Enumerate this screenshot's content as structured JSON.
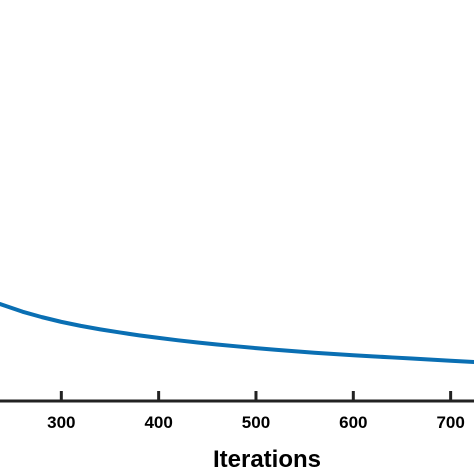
{
  "chart_data": {
    "type": "line",
    "title": "",
    "xlabel": "Iterations",
    "ylabel": "",
    "grid": false,
    "legend": "none",
    "x_ticks": [
      300,
      400,
      500,
      600,
      700
    ],
    "x_tick_labels": [
      "300",
      "400",
      "500",
      "600",
      "700"
    ],
    "xlim": [
      237,
      724
    ],
    "series": [
      {
        "color": "#0a6fb3",
        "x": [
          237,
          260,
          280,
          300,
          320,
          340,
          360,
          380,
          400,
          420,
          440,
          460,
          480,
          500,
          520,
          540,
          560,
          580,
          600,
          620,
          640,
          660,
          680,
          700,
          724
        ],
        "y": [
          0.3,
          0.258,
          0.228,
          0.202,
          0.18,
          0.161,
          0.144,
          0.128,
          0.114,
          0.101,
          0.089,
          0.078,
          0.068,
          0.058,
          0.049,
          0.041,
          0.033,
          0.026,
          0.019,
          0.013,
          0.007,
          0.001,
          -0.005,
          -0.011,
          -0.018
        ]
      }
    ]
  }
}
